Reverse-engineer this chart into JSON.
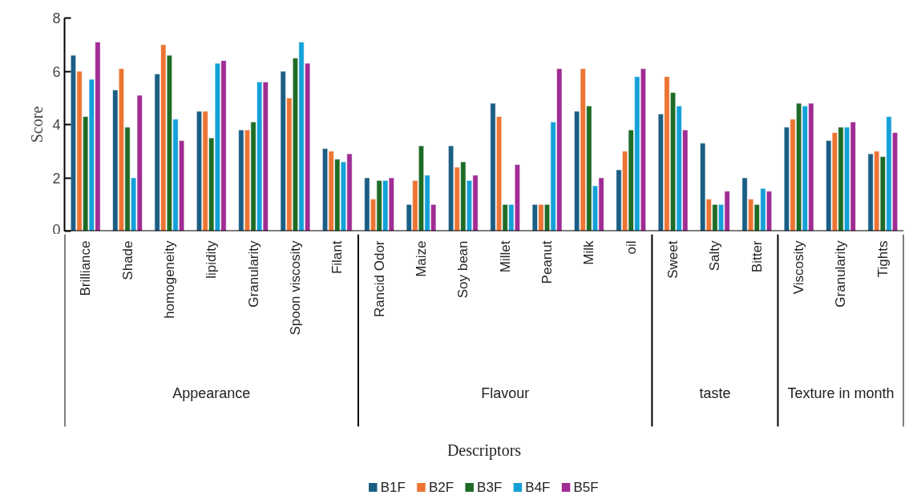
{
  "chart_data": {
    "type": "bar",
    "ylabel": "Score",
    "categories": [
      "Brilliance",
      "Shade",
      "homogeneity",
      "lipidity",
      "Granularity",
      "Spoon viscosity",
      "Filant",
      "Rancid Odor",
      "Maize",
      "Soy bean",
      "Millet",
      "Peanut",
      "Milk",
      "oil",
      "Sweet",
      "Salty",
      "Bitter",
      "Viscosity",
      "Granularity",
      "Tights"
    ],
    "annotations": [
      "Appearance",
      "Flavour",
      "taste",
      "Texture in month",
      "Descriptors"
    ],
    "series": [
      {
        "name": "B1F",
        "color": "#1b5e84",
        "values": [
          6.6,
          5.3,
          5.9,
          4.5,
          3.8,
          6.0,
          3.1,
          2.0,
          1.0,
          3.2,
          4.8,
          1.0,
          4.5,
          2.3,
          4.4,
          3.3,
          2.0,
          3.9,
          3.4,
          2.9
        ]
      },
      {
        "name": "B2F",
        "color": "#ed7433",
        "values": [
          6.0,
          6.1,
          7.0,
          4.5,
          3.8,
          5.0,
          3.0,
          1.2,
          1.9,
          2.4,
          4.3,
          1.0,
          6.1,
          3.0,
          5.8,
          1.2,
          1.2,
          4.2,
          3.7,
          3.0
        ]
      },
      {
        "name": "B3F",
        "color": "#1e6b26",
        "values": [
          4.3,
          3.9,
          6.6,
          3.5,
          4.1,
          6.5,
          2.7,
          1.9,
          3.2,
          2.6,
          1.0,
          1.0,
          4.7,
          3.8,
          5.2,
          1.0,
          1.0,
          4.8,
          3.9,
          2.8
        ]
      },
      {
        "name": "B4F",
        "color": "#14a0d8",
        "values": [
          5.7,
          2.0,
          4.2,
          6.3,
          5.6,
          7.1,
          2.6,
          1.9,
          2.1,
          1.9,
          1.0,
          4.1,
          1.7,
          5.8,
          4.7,
          1.0,
          1.6,
          4.7,
          3.9,
          4.3
        ]
      },
      {
        "name": "B5F",
        "color": "#a02c94",
        "values": [
          7.1,
          5.1,
          3.4,
          6.4,
          5.6,
          6.3,
          2.9,
          2.0,
          1.0,
          2.1,
          2.5,
          6.1,
          2.0,
          6.1,
          3.8,
          1.5,
          1.5,
          4.8,
          4.1,
          3.7
        ]
      }
    ],
    "ylim": [
      0,
      8
    ],
    "yticks": [
      0,
      2,
      4,
      6,
      8
    ],
    "grid": false,
    "legend": "bottom"
  }
}
